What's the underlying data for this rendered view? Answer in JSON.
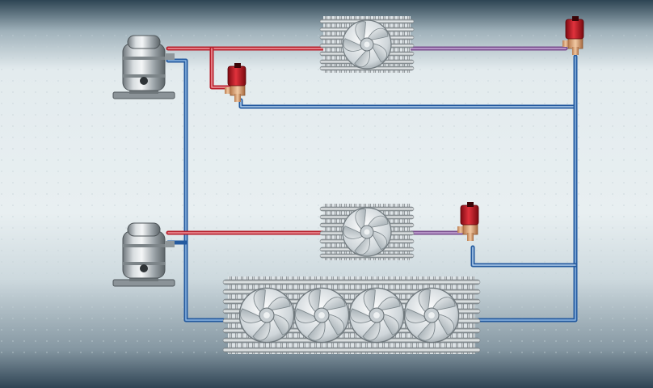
{
  "diagram": {
    "kind": "refrigeration-schematic",
    "components": {
      "compressors": 2,
      "evaporators_small": 2,
      "condenser_fans": 4,
      "solenoid_valves": 3
    },
    "colors": {
      "background_top": "#2f4656",
      "background_mid": "#e6eef0",
      "background_bottom": "#3f586a",
      "hot_pipe": "#c8303c",
      "hot_pipe_light": "#e78a92",
      "cold_pipe": "#2f6bb6",
      "cold_pipe_light": "#a9c6e6",
      "valve": "#c3121e",
      "metal": "#9aa3a8"
    }
  }
}
